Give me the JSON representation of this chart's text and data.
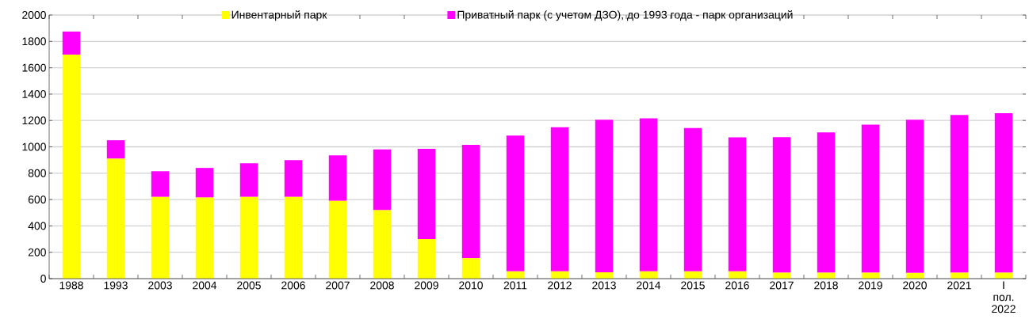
{
  "chart_data": {
    "type": "bar",
    "stacked": true,
    "categories": [
      "1988",
      "1993",
      "2003",
      "2004",
      "2005",
      "2006",
      "2007",
      "2008",
      "2009",
      "2010",
      "2011",
      "2012",
      "2013",
      "2014",
      "2015",
      "2016",
      "2017",
      "2018",
      "2019",
      "2020",
      "2021",
      "I пол. 2022"
    ],
    "series": [
      {
        "name": "Инвентарный парк",
        "color": "#ffff00",
        "values": [
          1700,
          910,
          620,
          615,
          620,
          620,
          590,
          520,
          300,
          155,
          55,
          55,
          48,
          55,
          55,
          55,
          45,
          45,
          45,
          43,
          45,
          45
        ]
      },
      {
        "name": "Приватный парк (с учетом ДЗО), до 1993 года - парк организаций",
        "color": "#ff00ff",
        "values": [
          175,
          140,
          195,
          225,
          255,
          280,
          345,
          460,
          685,
          860,
          1030,
          1093,
          1158,
          1161,
          1088,
          1017,
          1029,
          1065,
          1123,
          1163,
          1196,
          1211
        ]
      }
    ],
    "ylim": [
      0,
      2000
    ],
    "yticks": [
      0,
      200,
      400,
      600,
      800,
      1000,
      1200,
      1400,
      1600,
      1800,
      2000
    ],
    "grid": "y",
    "legend": "top"
  }
}
